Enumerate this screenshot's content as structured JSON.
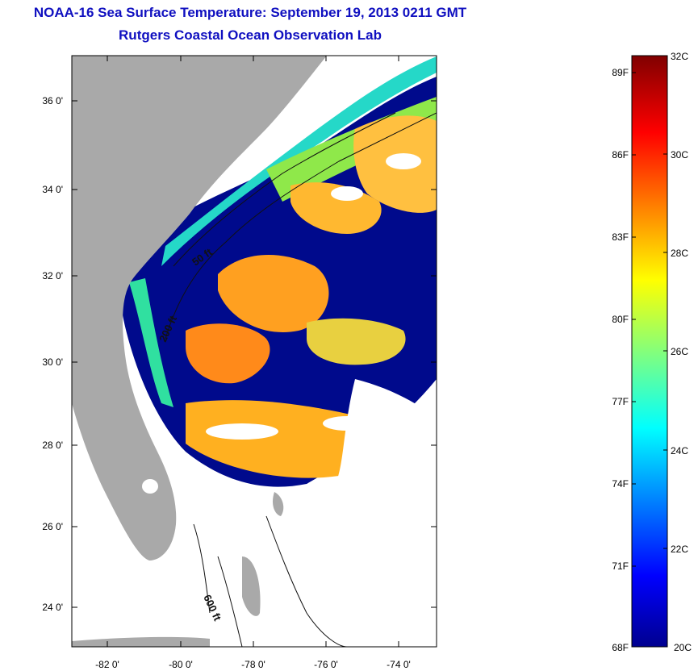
{
  "title": {
    "line1": "NOAA-16 Sea Surface Temperature:  September 19, 2013 0211 GMT",
    "line2": "Rutgers Coastal Ocean Observation Lab"
  },
  "map": {
    "lon_ticks": [
      "-82 0'",
      "-80 0'",
      "-78 0'",
      "-76 0'",
      "-74 0'"
    ],
    "lat_ticks": [
      "36 0'",
      "34 0'",
      "32 0'",
      "30 0'",
      "28 0'",
      "26 0'",
      "24 0'"
    ],
    "contour_labels": [
      "50 ft",
      "200 ft",
      "600 ft"
    ],
    "colors": {
      "land": "#a9a9a9",
      "cloud": "#ffffff",
      "cold": "#000a8c",
      "mid": "#2af0c0",
      "warm": "#ffa020"
    }
  },
  "colorbar": {
    "fahrenheit": [
      "89F",
      "86F",
      "83F",
      "80F",
      "77F",
      "74F",
      "71F",
      "68F"
    ],
    "celsius": [
      "32C",
      "30C",
      "28C",
      "26C",
      "24C",
      "22C",
      "20C"
    ],
    "range_c": [
      20,
      32
    ]
  }
}
